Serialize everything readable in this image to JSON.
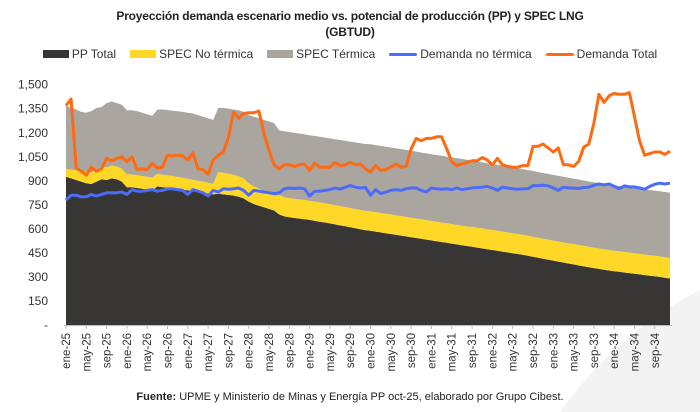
{
  "chart_data": {
    "type": "area",
    "stacked_areas": true,
    "title": "Proyección demanda escenario medio vs. potencial de producción (PP) y SPEC LNG",
    "subtitle": "(GBTUD)",
    "xlabel": "",
    "ylabel": "",
    "ylim": [
      0,
      1500
    ],
    "yticks": [
      0,
      150,
      300,
      450,
      600,
      750,
      900,
      1050,
      1200,
      1350,
      1500
    ],
    "ytick_labels": [
      "-",
      "150",
      "300",
      "450",
      "600",
      "750",
      "900",
      "1,050",
      "1,200",
      "1,350",
      "1,500"
    ],
    "x_period": "monthly",
    "x_range": [
      "ene-25",
      "dic-34"
    ],
    "xtick_labels": [
      "ene-25",
      "may-25",
      "sep-25",
      "ene-26",
      "may-26",
      "sep-26",
      "ene-27",
      "may-27",
      "sep-27",
      "ene-28",
      "may-28",
      "sep-28",
      "ene-29",
      "may-29",
      "sep-29",
      "ene-30",
      "may-30",
      "sep-30",
      "ene-31",
      "may-31",
      "sep-31",
      "ene-32",
      "may-32",
      "sep-32",
      "ene-33",
      "may-33",
      "sep-33",
      "ene-34",
      "may-34",
      "sep-34"
    ],
    "grid": false,
    "legend_position": "top",
    "series": [
      {
        "name": "PP Total",
        "kind": "area",
        "color": "#383635",
        "values": [
          925,
          915,
          905,
          895,
          885,
          880,
          895,
          910,
          905,
          915,
          910,
          895,
          860,
          860,
          855,
          850,
          845,
          840,
          865,
          860,
          858,
          855,
          850,
          845,
          840,
          835,
          830,
          825,
          820,
          815,
          820,
          815,
          812,
          808,
          800,
          790,
          770,
          755,
          745,
          735,
          725,
          715,
          690,
          678,
          672,
          668,
          664,
          660,
          656,
          650,
          645,
          640,
          634,
          628,
          622,
          616,
          610,
          604,
          598,
          592,
          588,
          583,
          578,
          573,
          568,
          563,
          558,
          553,
          548,
          543,
          538,
          533,
          528,
          523,
          518,
          513,
          508,
          503,
          498,
          493,
          488,
          483,
          478,
          473,
          468,
          463,
          458,
          453,
          448,
          443,
          438,
          432,
          426,
          420,
          414,
          408,
          402,
          396,
          390,
          384,
          378,
          372,
          366,
          360,
          355,
          350,
          345,
          340,
          336,
          332,
          328,
          324,
          320,
          316,
          312,
          308,
          304,
          300,
          295,
          290
        ]
      },
      {
        "name": "SPEC No térmica",
        "kind": "area",
        "color": "#FFD726",
        "values": [
          50,
          55,
          60,
          65,
          70,
          72,
          75,
          78,
          80,
          80,
          80,
          80,
          80,
          80,
          80,
          80,
          80,
          80,
          78,
          78,
          76,
          76,
          74,
          74,
          72,
          72,
          70,
          70,
          68,
          65,
          135,
          135,
          132,
          130,
          128,
          125,
          115,
          110,
          105,
          100,
          95,
          92,
          120,
          120,
          120,
          120,
          120,
          120,
          120,
          120,
          120,
          120,
          120,
          120,
          120,
          120,
          120,
          120,
          120,
          120,
          122,
          122,
          122,
          122,
          122,
          122,
          122,
          122,
          122,
          122,
          122,
          122,
          122,
          122,
          122,
          122,
          122,
          122,
          122,
          122,
          125,
          125,
          125,
          125,
          125,
          125,
          125,
          125,
          125,
          125,
          125,
          125,
          125,
          125,
          125,
          125,
          125,
          125,
          125,
          125,
          128,
          128,
          128,
          128,
          128,
          128,
          128,
          128,
          128,
          128,
          128,
          128,
          128,
          128,
          128,
          128,
          128,
          128,
          128,
          128
        ]
      },
      {
        "name": "SPEC Térmica",
        "kind": "area",
        "color": "#ABA59F",
        "values": [
          395,
          385,
          380,
          370,
          370,
          383,
          385,
          372,
          400,
          400,
          395,
          400,
          400,
          400,
          400,
          395,
          390,
          385,
          402,
          407,
          408,
          407,
          410,
          411,
          413,
          413,
          410,
          405,
          402,
          400,
          400,
          405,
          406,
          407,
          412,
          415,
          425,
          435,
          440,
          445,
          450,
          453,
          405,
          412,
          413,
          412,
          411,
          410,
          409,
          410,
          410,
          410,
          411,
          412,
          413,
          414,
          415,
          416,
          417,
          418,
          418,
          418,
          418,
          418,
          418,
          418,
          418,
          418,
          418,
          418,
          416,
          416,
          416,
          416,
          416,
          416,
          416,
          416,
          416,
          416,
          412,
          412,
          412,
          412,
          412,
          412,
          412,
          412,
          412,
          412,
          410,
          410,
          410,
          410,
          410,
          410,
          410,
          410,
          410,
          410,
          408,
          408,
          408,
          408,
          408,
          408,
          408,
          408,
          408,
          408,
          407,
          407,
          407,
          407,
          407,
          407,
          407,
          407,
          407,
          407
        ]
      },
      {
        "name": "Demanda no térmica",
        "kind": "line",
        "color": "#4A6CF7",
        "values": [
          780,
          810,
          810,
          800,
          800,
          815,
          805,
          815,
          825,
          825,
          825,
          830,
          815,
          845,
          835,
          835,
          840,
          845,
          835,
          840,
          850,
          850,
          845,
          840,
          815,
          845,
          835,
          825,
          805,
          840,
          830,
          850,
          848,
          850,
          855,
          840,
          810,
          840,
          835,
          830,
          825,
          820,
          825,
          850,
          855,
          852,
          855,
          850,
          805,
          835,
          835,
          840,
          845,
          855,
          848,
          860,
          870,
          860,
          855,
          858,
          810,
          845,
          820,
          830,
          840,
          845,
          840,
          850,
          855,
          855,
          840,
          830,
          855,
          850,
          848,
          850,
          845,
          855,
          845,
          850,
          855,
          858,
          860,
          865,
          855,
          840,
          860,
          855,
          850,
          848,
          850,
          850,
          870,
          870,
          872,
          868,
          855,
          840,
          860,
          855,
          855,
          852,
          858,
          860,
          872,
          880,
          875,
          880,
          865,
          850,
          868,
          862,
          862,
          855,
          848,
          865,
          878,
          885,
          880,
          885
        ]
      },
      {
        "name": "Demanda Total",
        "kind": "line",
        "color": "#FF6A10",
        "values": [
          1370,
          1410,
          980,
          960,
          935,
          985,
          960,
          975,
          1040,
          1025,
          1040,
          1050,
          1020,
          1050,
          970,
          975,
          970,
          1010,
          980,
          985,
          1060,
          1055,
          1060,
          1055,
          1030,
          1075,
          975,
          970,
          940,
          1030,
          1060,
          1080,
          1170,
          1330,
          1290,
          1320,
          1325,
          1325,
          1335,
          1200,
          1090,
          1000,
          975,
          1000,
          1000,
          990,
          1000,
          1005,
          965,
          1010,
          985,
          985,
          985,
          1015,
          995,
          1000,
          1015,
          1000,
          1005,
          975,
          955,
          995,
          965,
          970,
          985,
          1005,
          985,
          990,
          1100,
          1165,
          1150,
          1165,
          1165,
          1175,
          1175,
          1100,
          1020,
          995,
          1005,
          1015,
          1025,
          1025,
          1045,
          1030,
          1000,
          1040,
          1000,
          990,
          985,
          985,
          995,
          995,
          1115,
          1115,
          1130,
          1105,
          1080,
          1105,
          1000,
          1000,
          990,
          1020,
          1110,
          1130,
          1260,
          1440,
          1390,
          1430,
          1446,
          1440,
          1440,
          1450,
          1300,
          1150,
          1060,
          1070,
          1080,
          1080,
          1065,
          1085
        ]
      }
    ]
  },
  "footer": {
    "label": "Fuente:",
    "text": " UPME y Ministerio de Minas y Energía PP oct-25, elaborado por Grupo Cibest."
  }
}
